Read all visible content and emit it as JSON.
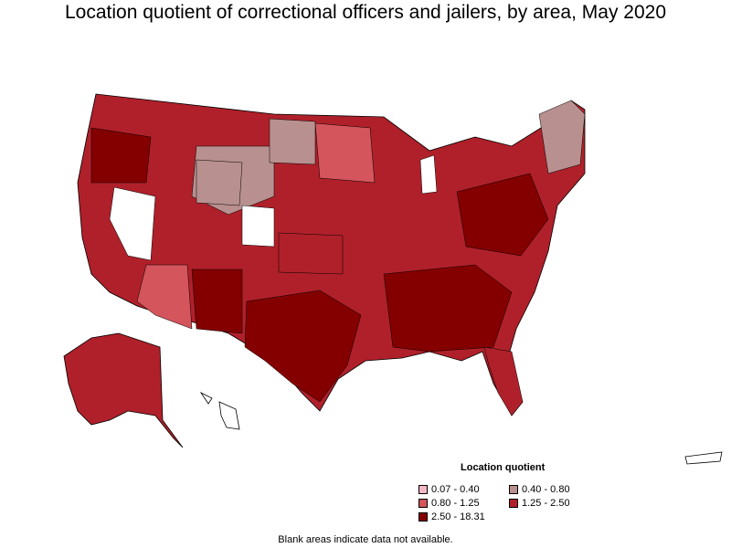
{
  "title": "Location quotient of correctional officers and jailers, by area, May 2020",
  "legend": {
    "title": "Location quotient",
    "items": [
      {
        "label": "0.07 - 0.40",
        "color": "#f4b8c4"
      },
      {
        "label": "0.40 - 0.80",
        "color": "#b8908f"
      },
      {
        "label": "0.80 - 1.25",
        "color": "#d4555c"
      },
      {
        "label": "1.25 - 2.50",
        "color": "#b0202a"
      },
      {
        "label": "2.50 - 18.31",
        "color": "#840000"
      }
    ]
  },
  "note": "Blank areas indicate data not available.",
  "colors": {
    "very_low": "#f4b8c4",
    "low": "#b8908f",
    "medium": "#d4555c",
    "high": "#b0202a",
    "very_high": "#840000",
    "no_data": "#ffffff"
  }
}
